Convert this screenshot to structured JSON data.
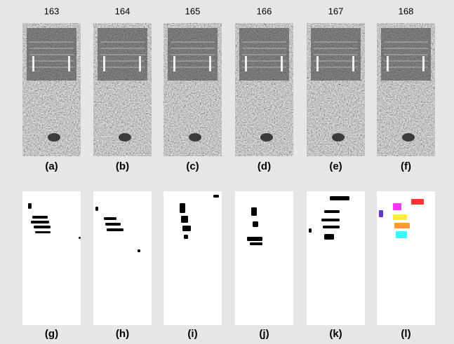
{
  "frames": [
    {
      "number": "163",
      "top_label": "(a)",
      "bottom_label": "(g)"
    },
    {
      "number": "164",
      "top_label": "(b)",
      "bottom_label": "(h)"
    },
    {
      "number": "165",
      "top_label": "(c)",
      "bottom_label": "(i)"
    },
    {
      "number": "166",
      "top_label": "(d)",
      "bottom_label": "(j)"
    },
    {
      "number": "167",
      "top_label": "(e)",
      "bottom_label": "(k)"
    },
    {
      "number": "168",
      "top_label": "(f)",
      "bottom_label": "(l)"
    }
  ]
}
